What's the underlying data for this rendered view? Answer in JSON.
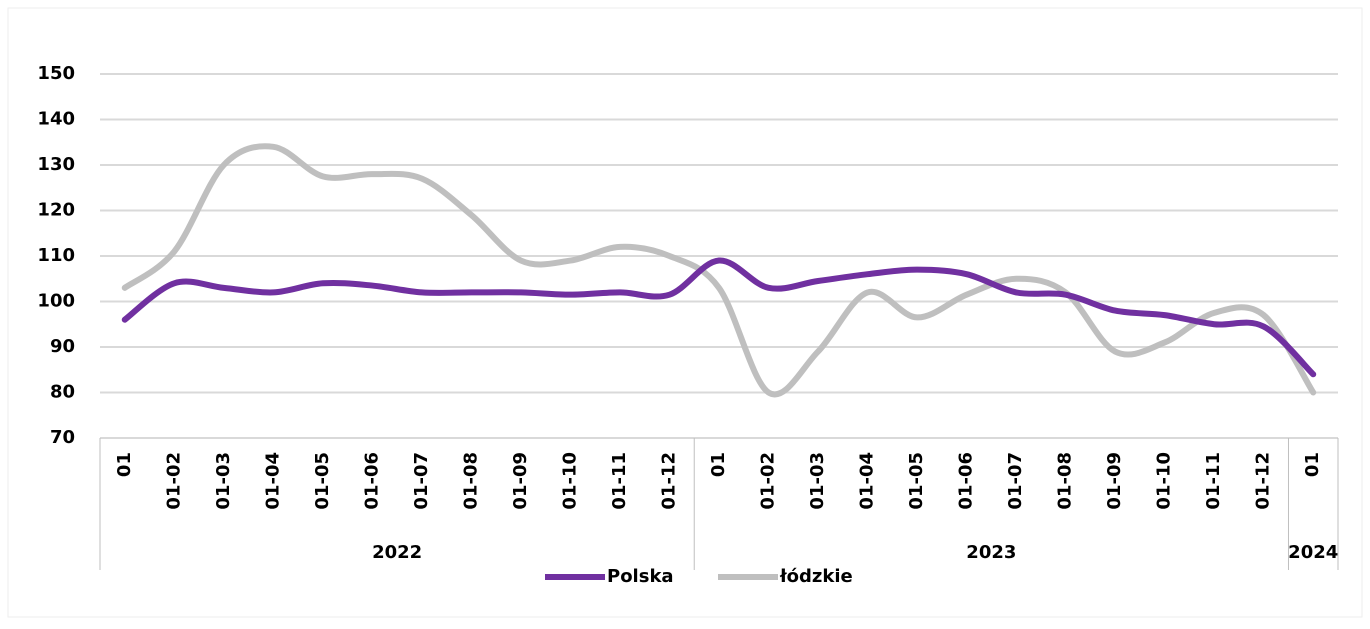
{
  "chart_data": {
    "type": "line",
    "category_groups": [
      {
        "label": "2022",
        "categories": [
          "01",
          "01-02",
          "01-03",
          "01-04",
          "01-05",
          "01-06",
          "01-07",
          "01-08",
          "01-09",
          "01-10",
          "01-11",
          "01-12"
        ]
      },
      {
        "label": "2023",
        "categories": [
          "01",
          "01-02",
          "01-03",
          "01-04",
          "01-05",
          "01-06",
          "01-07",
          "01-08",
          "01-09",
          "01-10",
          "01-11",
          "01-12"
        ]
      },
      {
        "label": "2024",
        "categories": [
          "01"
        ]
      }
    ],
    "series": [
      {
        "name": "Polska",
        "color": "#7030a0",
        "values": [
          96,
          104,
          103,
          102,
          104,
          103.5,
          102,
          102,
          102,
          101.5,
          102,
          101.5,
          109,
          103,
          104.5,
          106,
          107,
          106,
          102,
          101.5,
          98,
          97,
          95,
          94.5,
          84
        ]
      },
      {
        "name": "łódzkie",
        "color": "#bfbfbf",
        "values": [
          103,
          111,
          130,
          134,
          127.5,
          128,
          127,
          119,
          109,
          109,
          112,
          110,
          103,
          80,
          89,
          102,
          96.5,
          101.5,
          105,
          102,
          89,
          91,
          97.5,
          97,
          80
        ]
      }
    ],
    "ylim": [
      70,
      150
    ],
    "yticks": [
      70,
      80,
      90,
      100,
      110,
      120,
      130,
      140,
      150
    ],
    "grid": true,
    "legend": "bottom"
  }
}
